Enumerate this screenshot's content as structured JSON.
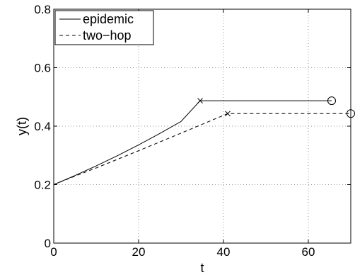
{
  "chart_data": {
    "type": "line",
    "title": "",
    "xlabel": "t",
    "ylabel": "y(t)",
    "xlim": [
      0,
      70
    ],
    "ylim": [
      0,
      0.8
    ],
    "xticks": [
      0,
      20,
      40,
      60
    ],
    "yticks": [
      0,
      0.2,
      0.4,
      0.6,
      0.8
    ],
    "xtick_labels": [
      "0",
      "20",
      "40",
      "60"
    ],
    "ytick_labels": [
      "0",
      "0.2",
      "0.4",
      "0.6",
      "0.8"
    ],
    "grid": true,
    "grid_style": "dotted",
    "legend_position": "top-left",
    "series": [
      {
        "name": "epidemic",
        "line_style": "solid",
        "color": "#000000",
        "points": [
          [
            0,
            0.2
          ],
          [
            5,
            0.231
          ],
          [
            10,
            0.264
          ],
          [
            15,
            0.299
          ],
          [
            20,
            0.336
          ],
          [
            25,
            0.375
          ],
          [
            30,
            0.416
          ],
          [
            34.5,
            0.487
          ],
          [
            65.5,
            0.487
          ]
        ],
        "markers": [
          {
            "symbol": "x",
            "x": 34.5,
            "y": 0.487
          },
          {
            "symbol": "circle",
            "x": 65.5,
            "y": 0.487
          }
        ]
      },
      {
        "name": "two−hop",
        "line_style": "dashed",
        "color": "#000000",
        "points": [
          [
            0,
            0.2
          ],
          [
            5,
            0.229
          ],
          [
            10,
            0.257
          ],
          [
            20,
            0.316
          ],
          [
            30,
            0.376
          ],
          [
            41,
            0.443
          ],
          [
            70,
            0.443
          ]
        ],
        "markers": [
          {
            "symbol": "x",
            "x": 41,
            "y": 0.443
          },
          {
            "symbol": "circle",
            "x": 70,
            "y": 0.443
          }
        ]
      }
    ]
  }
}
